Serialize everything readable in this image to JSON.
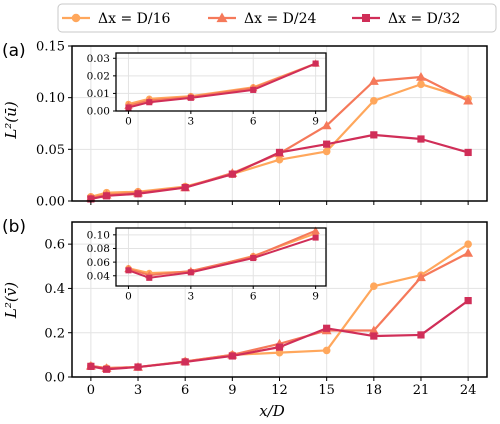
{
  "colors": {
    "s1": "#ffa75c",
    "s2": "#f5795a",
    "s3": "#d02e58"
  },
  "legend": {
    "s1": "Δx = D/16",
    "s2": "Δx = D/24",
    "s3": "Δx = D/32"
  },
  "chart_data": [
    {
      "type": "line",
      "panel_label": "(a)",
      "ylabel": "L²(ū)",
      "xlabel": "",
      "xlim": [
        -1.2,
        25.2
      ],
      "ylim": [
        0,
        0.15
      ],
      "xticks": [
        0,
        3,
        6,
        9,
        12,
        15,
        18,
        21,
        24
      ],
      "yticks": [
        0.0,
        0.05,
        0.1,
        0.15
      ],
      "ytick_labels": [
        "0.00",
        "0.05",
        "0.10",
        "0.15"
      ],
      "legend": "top, outside, 3 columns",
      "grid": true,
      "x": [
        0,
        1,
        3,
        6,
        9,
        12,
        15,
        18,
        21,
        24
      ],
      "series": [
        {
          "name": "Δx = D/16",
          "marker": "circle",
          "values": [
            0.004,
            0.008,
            0.009,
            0.014,
            0.026,
            0.04,
            0.048,
            0.097,
            0.113,
            0.099
          ]
        },
        {
          "name": "Δx = D/24",
          "marker": "triangle",
          "values": [
            0.003,
            0.006,
            0.008,
            0.013,
            0.027,
            0.046,
            0.073,
            0.116,
            0.12,
            0.097
          ]
        },
        {
          "name": "Δx = D/32",
          "marker": "square",
          "values": [
            0.002,
            0.005,
            0.007,
            0.013,
            0.026,
            0.047,
            0.055,
            0.064,
            0.06,
            0.047
          ]
        }
      ],
      "inset": {
        "xlim": [
          -0.6,
          9.5
        ],
        "ylim": [
          0,
          0.033
        ],
        "xticks": [
          0,
          3,
          6,
          9
        ],
        "yticks": [
          0,
          0.01,
          0.02,
          0.03
        ],
        "ytick_labels": [
          "0.00",
          "0.01",
          "0.02",
          "0.03"
        ],
        "x": [
          0,
          1,
          3,
          6,
          9
        ],
        "series": [
          {
            "name": "Δx = D/16",
            "values": [
              0.004,
              0.007,
              0.0085,
              0.0135,
              0.027
            ]
          },
          {
            "name": "Δx = D/24",
            "values": [
              0.003,
              0.006,
              0.008,
              0.013,
              0.027
            ]
          },
          {
            "name": "Δx = D/32",
            "values": [
              0.002,
              0.005,
              0.0075,
              0.012,
              0.027
            ]
          }
        ]
      }
    },
    {
      "type": "line",
      "panel_label": "(b)",
      "ylabel": "L²(v̄)",
      "xlabel": "x/D",
      "xlim": [
        -1.2,
        25.2
      ],
      "ylim": [
        0,
        0.7
      ],
      "xticks": [
        0,
        3,
        6,
        9,
        12,
        15,
        18,
        21,
        24
      ],
      "yticks": [
        0.0,
        0.2,
        0.4,
        0.6
      ],
      "ytick_labels": [
        "0.0",
        "0.2",
        "0.4",
        "0.6"
      ],
      "grid": true,
      "x": [
        0,
        1,
        3,
        6,
        9,
        12,
        15,
        18,
        21,
        24
      ],
      "series": [
        {
          "name": "Δx = D/16",
          "marker": "circle",
          "values": [
            0.05,
            0.04,
            0.045,
            0.07,
            0.1,
            0.11,
            0.12,
            0.41,
            0.46,
            0.6
          ]
        },
        {
          "name": "Δx = D/24",
          "marker": "triangle",
          "values": [
            0.05,
            0.04,
            0.045,
            0.07,
            0.1,
            0.15,
            0.21,
            0.21,
            0.45,
            0.56
          ]
        },
        {
          "name": "Δx = D/32",
          "marker": "square",
          "values": [
            0.048,
            0.035,
            0.045,
            0.068,
            0.095,
            0.135,
            0.22,
            0.185,
            0.19,
            0.345
          ]
        }
      ],
      "inset": {
        "xlim": [
          -0.6,
          9.5
        ],
        "ylim": [
          0.025,
          0.11
        ],
        "xticks": [
          0,
          3,
          6,
          9
        ],
        "yticks": [
          0.04,
          0.06,
          0.08,
          0.1
        ],
        "ytick_labels": [
          "0.04",
          "0.06",
          "0.08",
          "0.10"
        ],
        "x": [
          0,
          1,
          3,
          6,
          9
        ],
        "series": [
          {
            "name": "Δx = D/16",
            "values": [
              0.051,
              0.044,
              0.046,
              0.069,
              0.102
            ]
          },
          {
            "name": "Δx = D/24",
            "values": [
              0.05,
              0.041,
              0.047,
              0.068,
              0.106
            ]
          },
          {
            "name": "Δx = D/32",
            "values": [
              0.048,
              0.037,
              0.045,
              0.066,
              0.096
            ]
          }
        ]
      }
    }
  ]
}
